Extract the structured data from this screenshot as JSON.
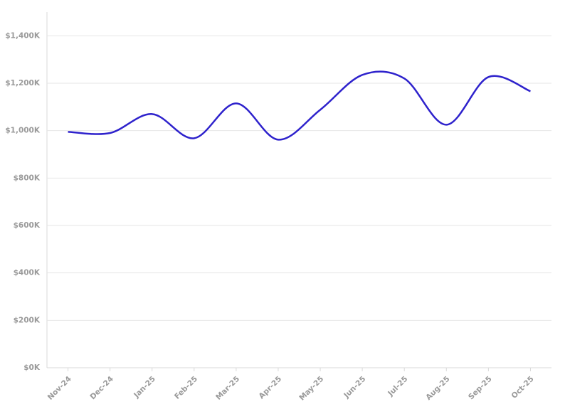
{
  "chart_data": {
    "type": "line",
    "categories": [
      "Nov-24",
      "Dec-24",
      "Jan-25",
      "Feb-25",
      "Mar-25",
      "Apr-25",
      "May-25",
      "Jun-25",
      "Jul-25",
      "Aug-25",
      "Sep-25",
      "Oct-25"
    ],
    "values": [
      995000,
      990000,
      1070000,
      968000,
      1115000,
      962000,
      1088000,
      1235000,
      1220000,
      1025000,
      1226000,
      1166000
    ],
    "color": "#2e22cc",
    "ylim": [
      0,
      1500000
    ],
    "yticks": [
      {
        "value": 0,
        "label": "$0K"
      },
      {
        "value": 200000,
        "label": "$200K"
      },
      {
        "value": 400000,
        "label": "$400K"
      },
      {
        "value": 600000,
        "label": "$600K"
      },
      {
        "value": 800000,
        "label": "$800K"
      },
      {
        "value": 1000000,
        "label": "$1,000K"
      },
      {
        "value": 1200000,
        "label": "$1,200K"
      },
      {
        "value": 1400000,
        "label": "$1,400K"
      }
    ],
    "grid": true
  }
}
